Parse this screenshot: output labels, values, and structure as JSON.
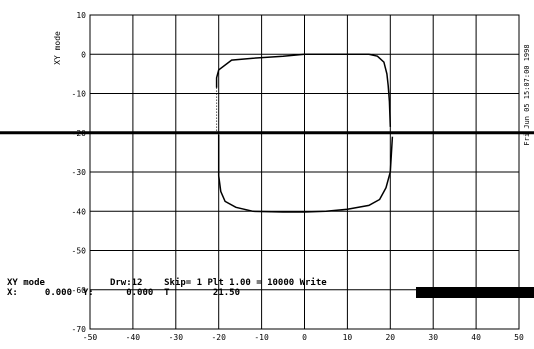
{
  "chart_data": {
    "type": "line",
    "title": "",
    "ylabel": "XY mode",
    "xlabel": "",
    "xlim": [
      -50,
      50
    ],
    "ylim": [
      -70,
      10
    ],
    "grid": true,
    "x_ticks": [
      "-50",
      "-40",
      "-30",
      "-20",
      "-10",
      "0",
      "10",
      "20",
      "30",
      "40",
      "50"
    ],
    "y_ticks": [
      "10",
      "0",
      "-10",
      "-20",
      "-30",
      "-40",
      "-50",
      "-60",
      "-70"
    ],
    "reference_line_y": -20,
    "series": [
      {
        "x": [
          -20.5,
          -20.5,
          -20.0,
          -17.0,
          -12.0,
          -5.0,
          0.0,
          5.0,
          10.0,
          15.0,
          17.0,
          18.5,
          19.2,
          19.5,
          19.8,
          20.0
        ],
        "y": [
          -8.5,
          -6.0,
          -4.0,
          -1.5,
          -1.0,
          -0.5,
          0.0,
          0.0,
          0.0,
          0.0,
          -0.5,
          -2.0,
          -5.0,
          -8.0,
          -12.0,
          -18.5
        ]
      },
      {
        "x": [
          -20.0,
          -20.0,
          -19.5,
          -18.5,
          -16.0,
          -12.0,
          -5.0,
          0.0,
          5.0,
          10.0,
          15.0,
          17.5,
          19.0,
          20.0,
          20.5
        ],
        "y": [
          -20.5,
          -31.0,
          -35.0,
          -37.5,
          -39.0,
          -40.0,
          -40.2,
          -40.2,
          -40.0,
          -39.5,
          -38.5,
          -37.0,
          -34.0,
          -30.0,
          -21.0
        ]
      }
    ],
    "dotted_segments": [
      {
        "x": [
          -20.5,
          -20.5
        ],
        "y": [
          -8.5,
          -20.5
        ]
      },
      {
        "x": [
          10.0,
          19.5
        ],
        "y": [
          -10.0,
          -10.0
        ]
      }
    ]
  },
  "status": {
    "line1": "XY mode            Drw:12    Skip= 1 Plt 1.00 = 10000 Write",
    "line2": "X:     0.000  Y:      0.000  T        21.50"
  },
  "side_text": "Fri Jun 05 15:07:00 1998"
}
